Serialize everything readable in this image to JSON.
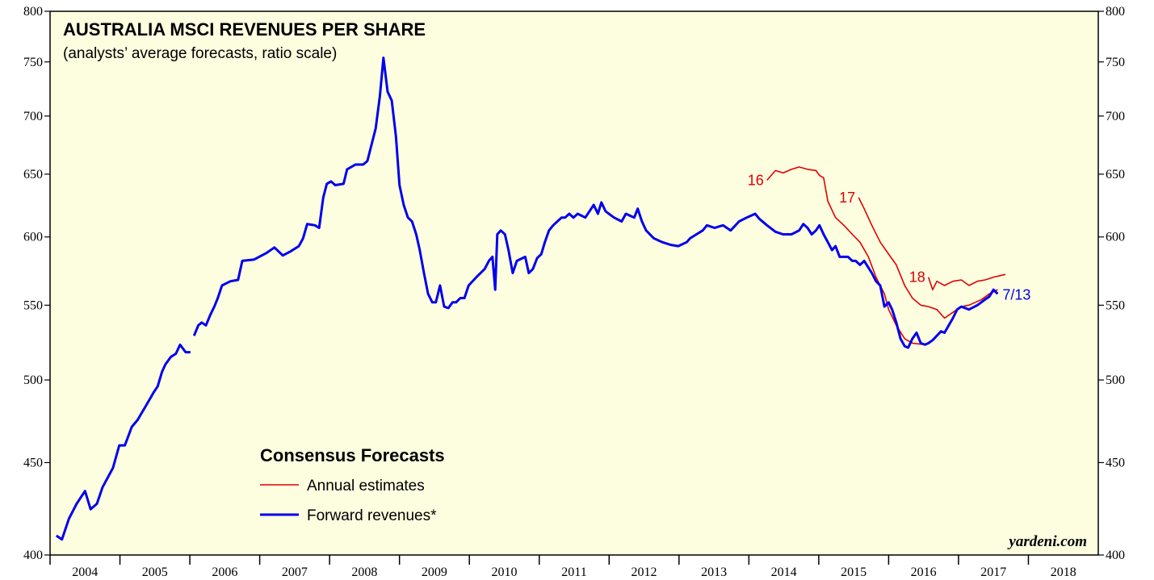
{
  "chart_data": {
    "type": "line",
    "title": "AUSTRALIA MSCI REVENUES PER SHARE",
    "subtitle": "(analysts’ average forecasts, ratio scale)",
    "legend_title": "Consensus Forecasts",
    "source": "yardeni.com",
    "yscale": "log",
    "xlim": [
      2004,
      2019
    ],
    "xticks": [
      2004,
      2005,
      2006,
      2007,
      2008,
      2009,
      2010,
      2011,
      2012,
      2013,
      2014,
      2015,
      2016,
      2017,
      2018
    ],
    "ylim": [
      400,
      800
    ],
    "yticks": [
      400,
      450,
      500,
      550,
      600,
      650,
      700,
      750,
      800
    ],
    "y2lim": [
      400,
      800
    ],
    "y2ticks": [
      400,
      450,
      500,
      550,
      600,
      650,
      700,
      750,
      800
    ],
    "series": [
      {
        "name": "Annual estimates",
        "color": "#e00000",
        "lines": [
          {
            "label": "16",
            "x": [
              2014.26,
              2014.38,
              2014.49,
              2014.61,
              2014.72,
              2014.84,
              2014.96,
              2015.01,
              2015.07,
              2015.13,
              2015.24,
              2015.36,
              2015.48,
              2015.59,
              2015.71,
              2015.82,
              2015.94,
              2016.0,
              2016.11,
              2016.23,
              2016.34,
              2016.52
            ],
            "values": [
              645,
              653,
              651,
              654,
              656,
              654,
              653,
              649,
              647,
              628,
              615,
              609,
              602,
              596,
              585,
              570,
              558,
              547,
              536,
              527,
              524,
              523
            ]
          },
          {
            "label": "17",
            "x": [
              2015.57,
              2015.65,
              2015.76,
              2015.88,
              2016.0,
              2016.11,
              2016.23,
              2016.34,
              2016.46,
              2016.57,
              2016.69,
              2016.8,
              2016.92,
              2017.04,
              2017.15,
              2017.33,
              2017.44,
              2017.56
            ],
            "values": [
              631,
              622,
              609,
              596,
              587,
              579,
              564,
              555,
              550,
              549,
              547,
              541,
              545,
              549,
              550,
              554,
              558,
              561
            ]
          },
          {
            "label": "18",
            "x": [
              2016.57,
              2016.63,
              2016.69,
              2016.8,
              2016.92,
              2017.04,
              2017.15,
              2017.27,
              2017.38,
              2017.5,
              2017.67
            ],
            "values": [
              570,
              561,
              567,
              564,
              567,
              568,
              564,
              567,
              568,
              570,
              572
            ]
          }
        ]
      },
      {
        "name": "Forward revenues*",
        "color": "#0000ee",
        "end_label": "7/13",
        "x": [
          2004.09,
          2004.17,
          2004.27,
          2004.38,
          2004.5,
          2004.58,
          2004.67,
          2004.75,
          2004.9,
          2004.99,
          2005.07,
          2005.17,
          2005.25,
          2005.36,
          2005.48,
          2005.54,
          2005.6,
          2005.65,
          2005.73,
          2005.8,
          2005.86,
          2005.94,
          2006.01,
          2006.03,
          2006.06,
          2006.12,
          2006.17,
          2006.23,
          2006.29,
          2006.35,
          2006.4,
          2006.46,
          2006.58,
          2006.69,
          2006.75,
          2006.92,
          2007.1,
          2007.21,
          2007.33,
          2007.44,
          2007.56,
          2007.62,
          2007.68,
          2007.79,
          2007.85,
          2007.91,
          2007.96,
          2008.02,
          2008.08,
          2008.2,
          2008.25,
          2008.37,
          2008.48,
          2008.54,
          2008.6,
          2008.66,
          2008.72,
          2008.77,
          2008.83,
          2008.89,
          2008.95,
          2009.0,
          2009.06,
          2009.12,
          2009.18,
          2009.24,
          2009.29,
          2009.35,
          2009.41,
          2009.47,
          2009.52,
          2009.58,
          2009.64,
          2009.7,
          2009.76,
          2009.81,
          2009.87,
          2009.93,
          2009.99,
          2010.1,
          2010.22,
          2010.28,
          2010.33,
          2010.37,
          2010.4,
          2010.45,
          2010.51,
          2010.56,
          2010.62,
          2010.68,
          2010.8,
          2010.85,
          2010.91,
          2010.97,
          2011.03,
          2011.08,
          2011.14,
          2011.2,
          2011.26,
          2011.32,
          2011.37,
          2011.43,
          2011.49,
          2011.55,
          2011.66,
          2011.78,
          2011.84,
          2011.89,
          2011.95,
          2012.07,
          2012.18,
          2012.24,
          2012.36,
          2012.41,
          2012.47,
          2012.53,
          2012.64,
          2012.76,
          2012.88,
          2012.99,
          2013.11,
          2013.16,
          2013.22,
          2013.34,
          2013.4,
          2013.51,
          2013.63,
          2013.74,
          2013.86,
          2013.97,
          2014.09,
          2014.15,
          2014.26,
          2014.38,
          2014.49,
          2014.61,
          2014.72,
          2014.78,
          2014.84,
          2014.9,
          2014.96,
          2015.01,
          2015.07,
          2015.13,
          2015.19,
          2015.24,
          2015.3,
          2015.36,
          2015.42,
          2015.48,
          2015.53,
          2015.59,
          2015.65,
          2015.71,
          2015.76,
          2015.82,
          2015.88,
          2015.94,
          2016.0,
          2016.05,
          2016.11,
          2016.17,
          2016.23,
          2016.28,
          2016.34,
          2016.4,
          2016.46,
          2016.52,
          2016.57,
          2016.63,
          2016.69,
          2016.75,
          2016.8,
          2016.86,
          2016.92,
          2016.98,
          2017.04,
          2017.15,
          2017.27,
          2017.38,
          2017.44,
          2017.5,
          2017.56
        ],
        "values": [
          410,
          408,
          419,
          427,
          434,
          424,
          427,
          436,
          447,
          460,
          460,
          471,
          475,
          483,
          492,
          496,
          505,
          510,
          515,
          517,
          523,
          518,
          518,
          null,
          529,
          536,
          538,
          536,
          543,
          549,
          555,
          564,
          567,
          568,
          582,
          583,
          588,
          592,
          586,
          589,
          593,
          599,
          610,
          609,
          607,
          631,
          642,
          644,
          641,
          642,
          654,
          658,
          658,
          661,
          675,
          689,
          718,
          754,
          722,
          714,
          682,
          641,
          625,
          615,
          612,
          602,
          590,
          573,
          558,
          552,
          552,
          564,
          549,
          548,
          552,
          552,
          555,
          555,
          564,
          570,
          576,
          582,
          585,
          561,
          602,
          605,
          602,
          590,
          573,
          582,
          585,
          573,
          576,
          584,
          587,
          596,
          605,
          609,
          612,
          615,
          615,
          618,
          615,
          618,
          615,
          625,
          618,
          627,
          620,
          615,
          612,
          618,
          615,
          622,
          612,
          605,
          599,
          596,
          594,
          593,
          596,
          599,
          601,
          605,
          609,
          607,
          609,
          605,
          612,
          615,
          618,
          614,
          609,
          604,
          602,
          602,
          605,
          610,
          607,
          602,
          605,
          609,
          602,
          596,
          590,
          593,
          585,
          585,
          585,
          582,
          582,
          579,
          582,
          577,
          573,
          567,
          564,
          549,
          552,
          547,
          538,
          527,
          522,
          521,
          527,
          531,
          524,
          523,
          524,
          526,
          529,
          532,
          531,
          536,
          541,
          547,
          549,
          547,
          550,
          554,
          556,
          561,
          558
        ]
      }
    ]
  }
}
